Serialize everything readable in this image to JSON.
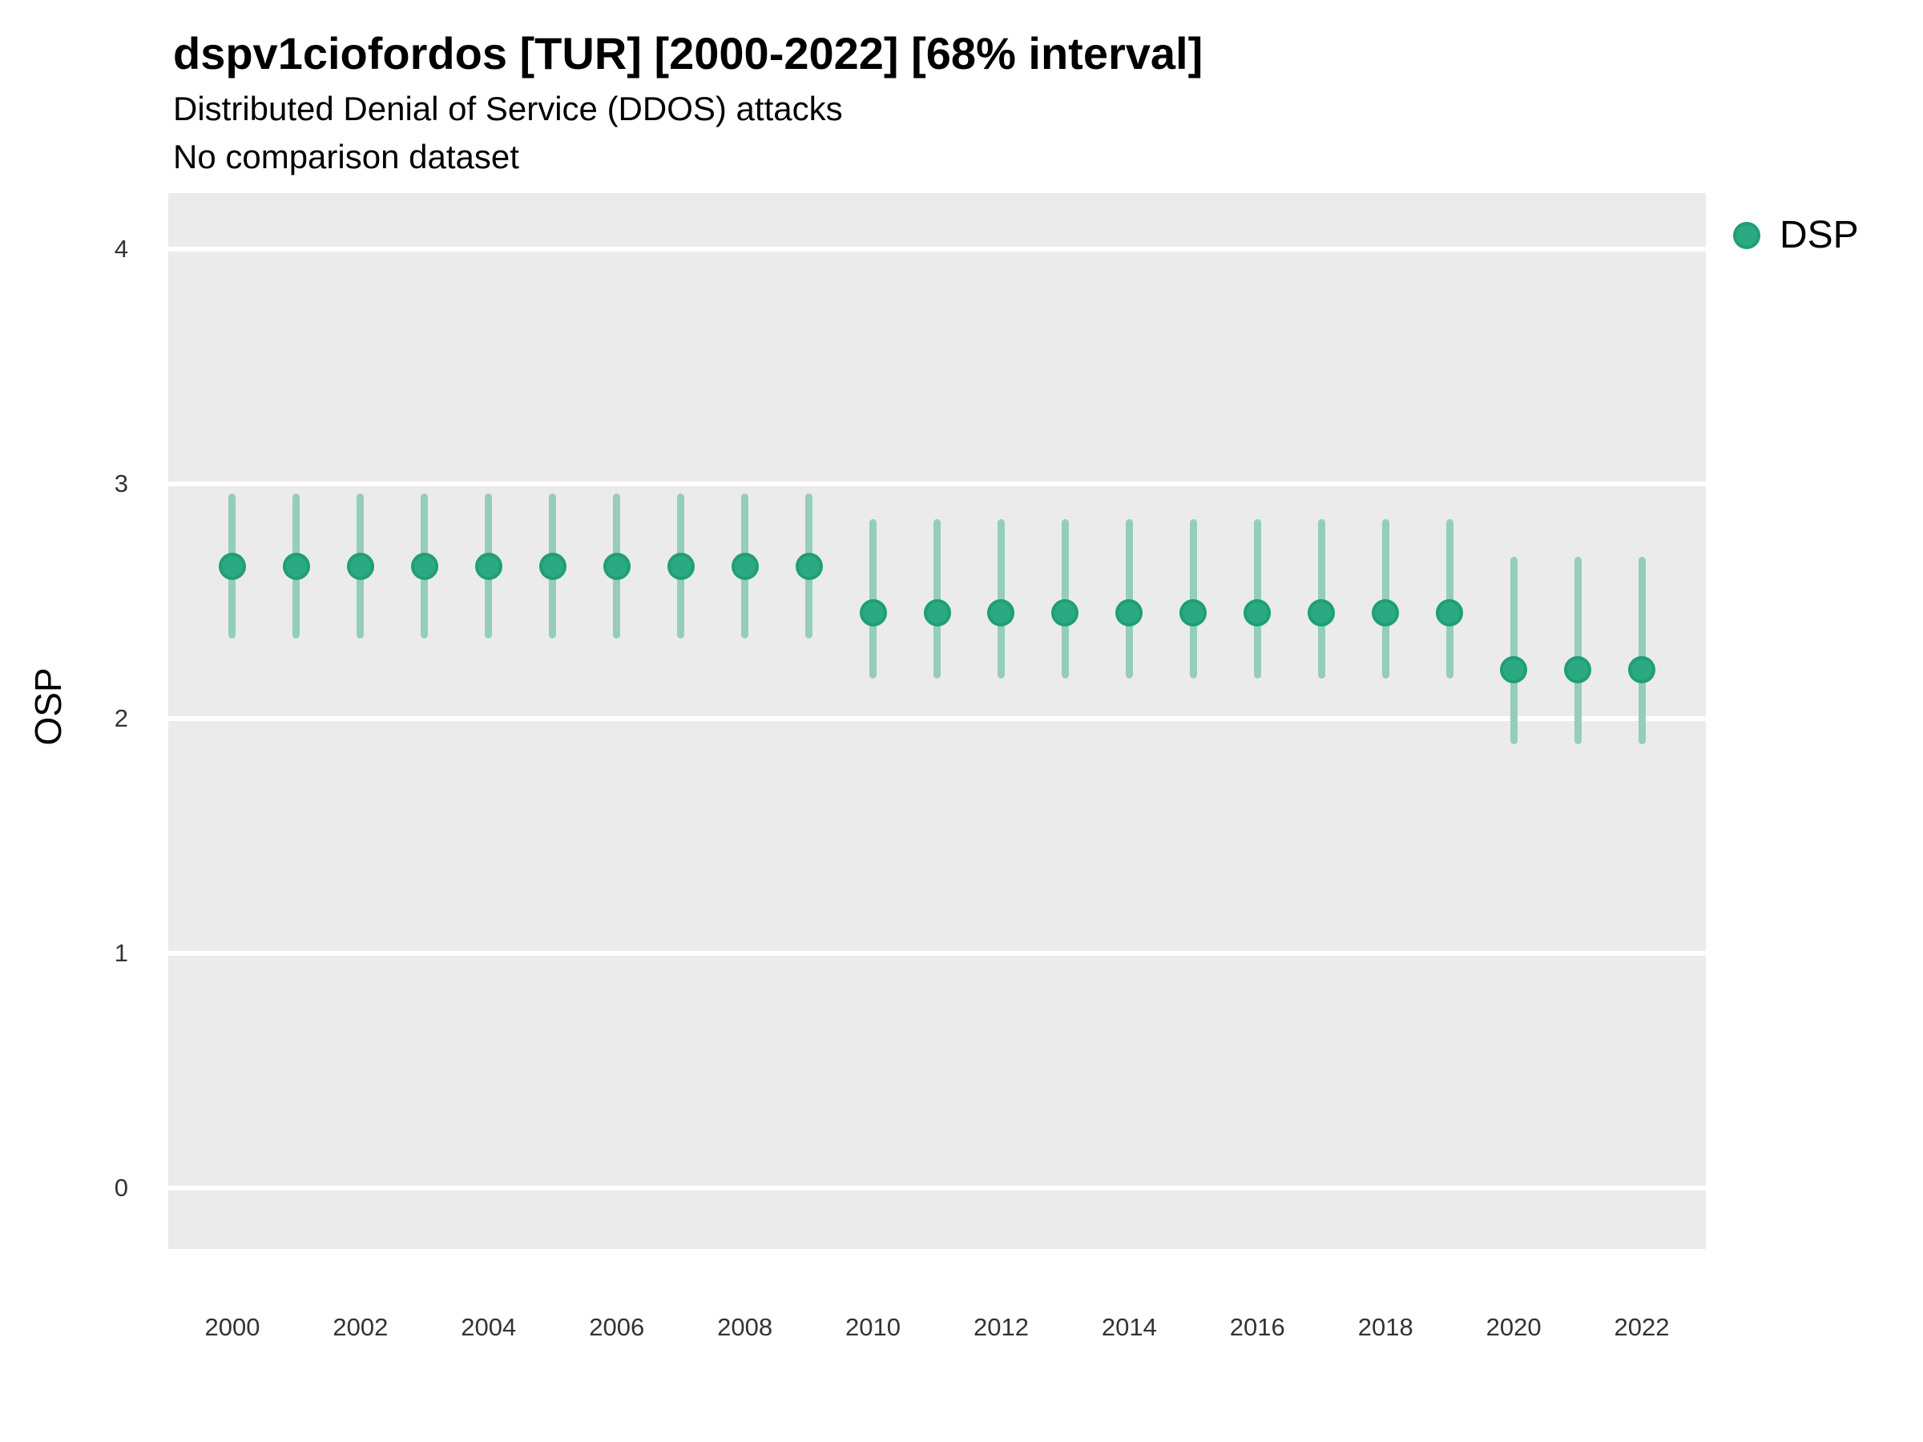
{
  "chart_data": {
    "type": "pointrange",
    "title": "dspv1ciofordos [TUR] [2000-2022] [68% interval]",
    "subtitle": "Distributed Denial of Service (DDOS) attacks",
    "annotation": "No comparison dataset",
    "interval": "68%",
    "xlabel": "",
    "ylabel": "OSP",
    "legend": {
      "position": "top-right",
      "entries": [
        "DSP"
      ]
    },
    "grid": "horizontal-major-only",
    "x": [
      2000,
      2001,
      2002,
      2003,
      2004,
      2005,
      2006,
      2007,
      2008,
      2009,
      2010,
      2011,
      2012,
      2013,
      2014,
      2015,
      2016,
      2017,
      2018,
      2019,
      2020,
      2021,
      2022
    ],
    "series": [
      {
        "name": "DSP",
        "values": [
          2.65,
          2.65,
          2.65,
          2.65,
          2.65,
          2.65,
          2.65,
          2.65,
          2.65,
          2.65,
          2.45,
          2.45,
          2.45,
          2.45,
          2.45,
          2.45,
          2.45,
          2.45,
          2.45,
          2.45,
          2.21,
          2.21,
          2.21
        ],
        "lower": [
          2.34,
          2.34,
          2.34,
          2.34,
          2.34,
          2.34,
          2.34,
          2.34,
          2.34,
          2.34,
          2.17,
          2.17,
          2.17,
          2.17,
          2.17,
          2.17,
          2.17,
          2.17,
          2.17,
          2.17,
          1.89,
          1.89,
          1.89
        ],
        "upper": [
          2.96,
          2.96,
          2.96,
          2.96,
          2.96,
          2.96,
          2.96,
          2.96,
          2.96,
          2.96,
          2.85,
          2.85,
          2.85,
          2.85,
          2.85,
          2.85,
          2.85,
          2.85,
          2.85,
          2.85,
          2.69,
          2.69,
          2.69
        ]
      }
    ],
    "xticks": [
      2000,
      2002,
      2004,
      2006,
      2008,
      2010,
      2012,
      2014,
      2016,
      2018,
      2020,
      2022
    ],
    "yticks": [
      0,
      1,
      2,
      3,
      4
    ],
    "xlim": [
      1999,
      2023
    ],
    "ylim": [
      -0.26,
      4.24
    ],
    "colors": {
      "point_fill": "#2BAA82",
      "point_stroke": "#1F9E77",
      "interval": "#94CEBA",
      "panel_bg": "#EBEBEB",
      "grid": "#FFFFFF"
    }
  }
}
